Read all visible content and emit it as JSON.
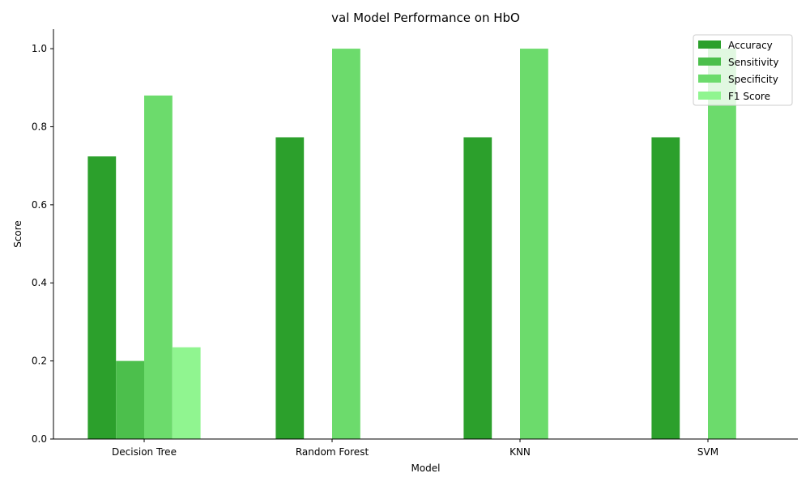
{
  "chart_data": {
    "type": "bar",
    "title": "val Model Performance on HbO",
    "xlabel": "Model",
    "ylabel": "Score",
    "categories": [
      "Decision Tree",
      "Random Forest",
      "KNN",
      "SVM"
    ],
    "series": [
      {
        "name": "Accuracy",
        "color": "#2ca02c",
        "values": [
          0.724,
          0.773,
          0.773,
          0.773
        ]
      },
      {
        "name": "Sensitivity",
        "color": "#4cbf4c",
        "values": [
          0.2,
          0.0,
          0.0,
          0.0
        ]
      },
      {
        "name": "Specificity",
        "color": "#6cdb6c",
        "values": [
          0.88,
          1.0,
          1.0,
          1.0
        ]
      },
      {
        "name": "F1 Score",
        "color": "#90f590",
        "values": [
          0.235,
          0.0,
          0.0,
          0.0
        ]
      }
    ],
    "ylim": [
      0,
      1.05
    ],
    "yticks": [
      0.0,
      0.2,
      0.4,
      0.6,
      0.8,
      1.0
    ],
    "ytick_labels": [
      "0.0",
      "0.2",
      "0.4",
      "0.6",
      "0.8",
      "1.0"
    ],
    "legend_position": "top-right",
    "grid": false
  }
}
